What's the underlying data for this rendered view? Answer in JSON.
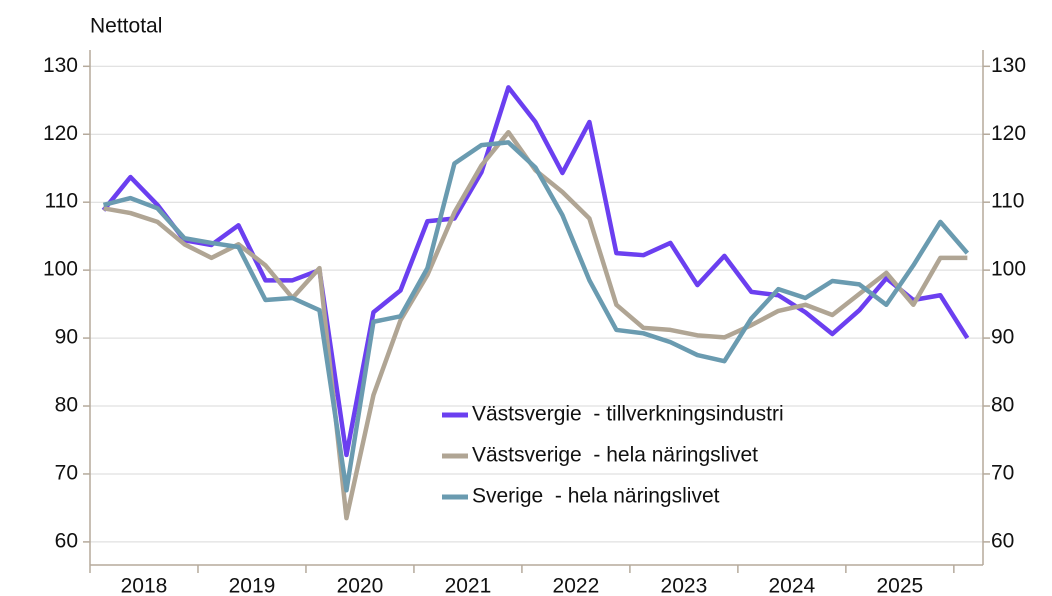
{
  "chart_data": {
    "type": "line",
    "title": "Nettotal",
    "x": [
      2018.125,
      2018.375,
      2018.625,
      2018.875,
      2019.125,
      2019.375,
      2019.625,
      2019.875,
      2020.125,
      2020.375,
      2020.625,
      2020.875,
      2021.125,
      2021.375,
      2021.625,
      2021.875,
      2022.125,
      2022.375,
      2022.625,
      2022.875,
      2023.125,
      2023.375,
      2023.625,
      2023.875,
      2024.125,
      2024.375,
      2024.625,
      2024.875,
      2025.125,
      2025.375,
      2025.625,
      2025.875,
      2026.125
    ],
    "year_labels": [
      "2018",
      "2019",
      "2020",
      "2021",
      "2022",
      "2023",
      "2024",
      "2025"
    ],
    "xlim": [
      2018,
      2026.27
    ],
    "xticks": [
      2018,
      2019,
      2020,
      2021,
      2022,
      2023,
      2024,
      2025,
      2026
    ],
    "ylim": [
      56.6,
      132.4
    ],
    "yticks": [
      60,
      70,
      80,
      90,
      100,
      110,
      120,
      130
    ],
    "y2lim": [
      56.6,
      132.4
    ],
    "y2ticks": [
      60,
      70,
      80,
      90,
      100,
      110,
      120,
      130
    ],
    "grid": true,
    "series": [
      {
        "name": "Västsvergie  - tillverkningsindustri",
        "color": "#6b3ff0",
        "values": [
          108.8,
          113.7,
          109.6,
          104.4,
          103.7,
          106.6,
          98.5,
          98.5,
          100,
          72.8,
          93.8,
          97,
          107.2,
          107.6,
          114.4,
          126.9,
          121.8,
          114.3,
          121.8,
          102.5,
          102.2,
          104,
          97.8,
          102.1,
          96.8,
          96.3,
          93.8,
          90.6,
          94.1,
          98.8,
          95.6,
          96.3,
          90
        ]
      },
      {
        "name": "Västsverige  - hela näringslivet",
        "color": "#b0a594",
        "values": [
          109.1,
          108.4,
          107.1,
          103.8,
          101.8,
          103.8,
          100.7,
          95.9,
          100.3,
          63.5,
          81.6,
          92.6,
          99.3,
          108.5,
          115.4,
          120.3,
          114.7,
          111.5,
          107.6,
          94.9,
          91.5,
          91.2,
          90.4,
          90.1,
          91.9,
          94,
          94.9,
          93.4,
          96.5,
          99.6,
          94.9,
          101.8,
          101.8
        ]
      },
      {
        "name": "Sverige  - hela näringslivet",
        "color": "#6a9bb0",
        "values": [
          109.6,
          110.6,
          109.1,
          104.7,
          104,
          103.4,
          95.6,
          95.9,
          94.1,
          67.6,
          92.4,
          93.2,
          100.3,
          115.7,
          118.4,
          118.8,
          115.1,
          108.1,
          98.5,
          91.2,
          90.7,
          89.4,
          87.5,
          86.6,
          92.9,
          97.2,
          95.9,
          98.4,
          97.9,
          94.9,
          100.7,
          107.1,
          102.5
        ]
      }
    ]
  }
}
